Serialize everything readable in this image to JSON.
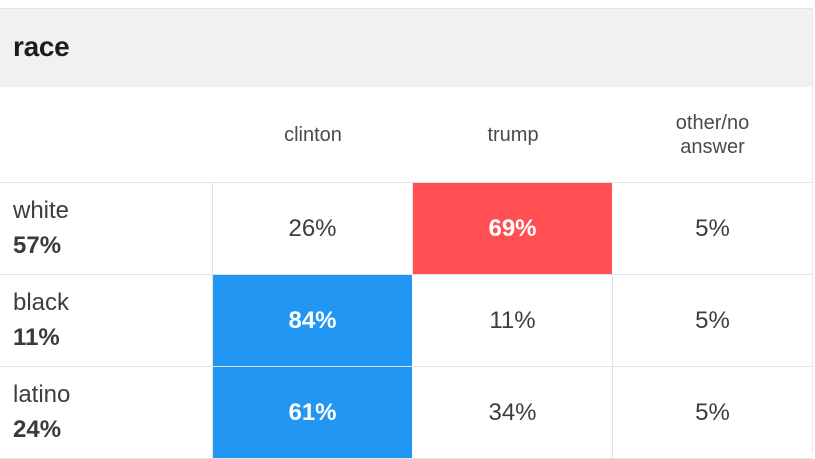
{
  "section": {
    "title": "race"
  },
  "columns": [
    "clinton",
    "trump",
    "other/no answer"
  ],
  "colors": {
    "clinton_win": "#2196f3",
    "trump_win": "#ff4f52"
  },
  "rows": [
    {
      "label": "white",
      "share": "57%",
      "values": [
        "26%",
        "69%",
        "5%"
      ],
      "winner": "trump"
    },
    {
      "label": "black",
      "share": "11%",
      "values": [
        "84%",
        "11%",
        "5%"
      ],
      "winner": "clinton"
    },
    {
      "label": "latino",
      "share": "24%",
      "values": [
        "61%",
        "34%",
        "5%"
      ],
      "winner": "clinton"
    }
  ]
}
